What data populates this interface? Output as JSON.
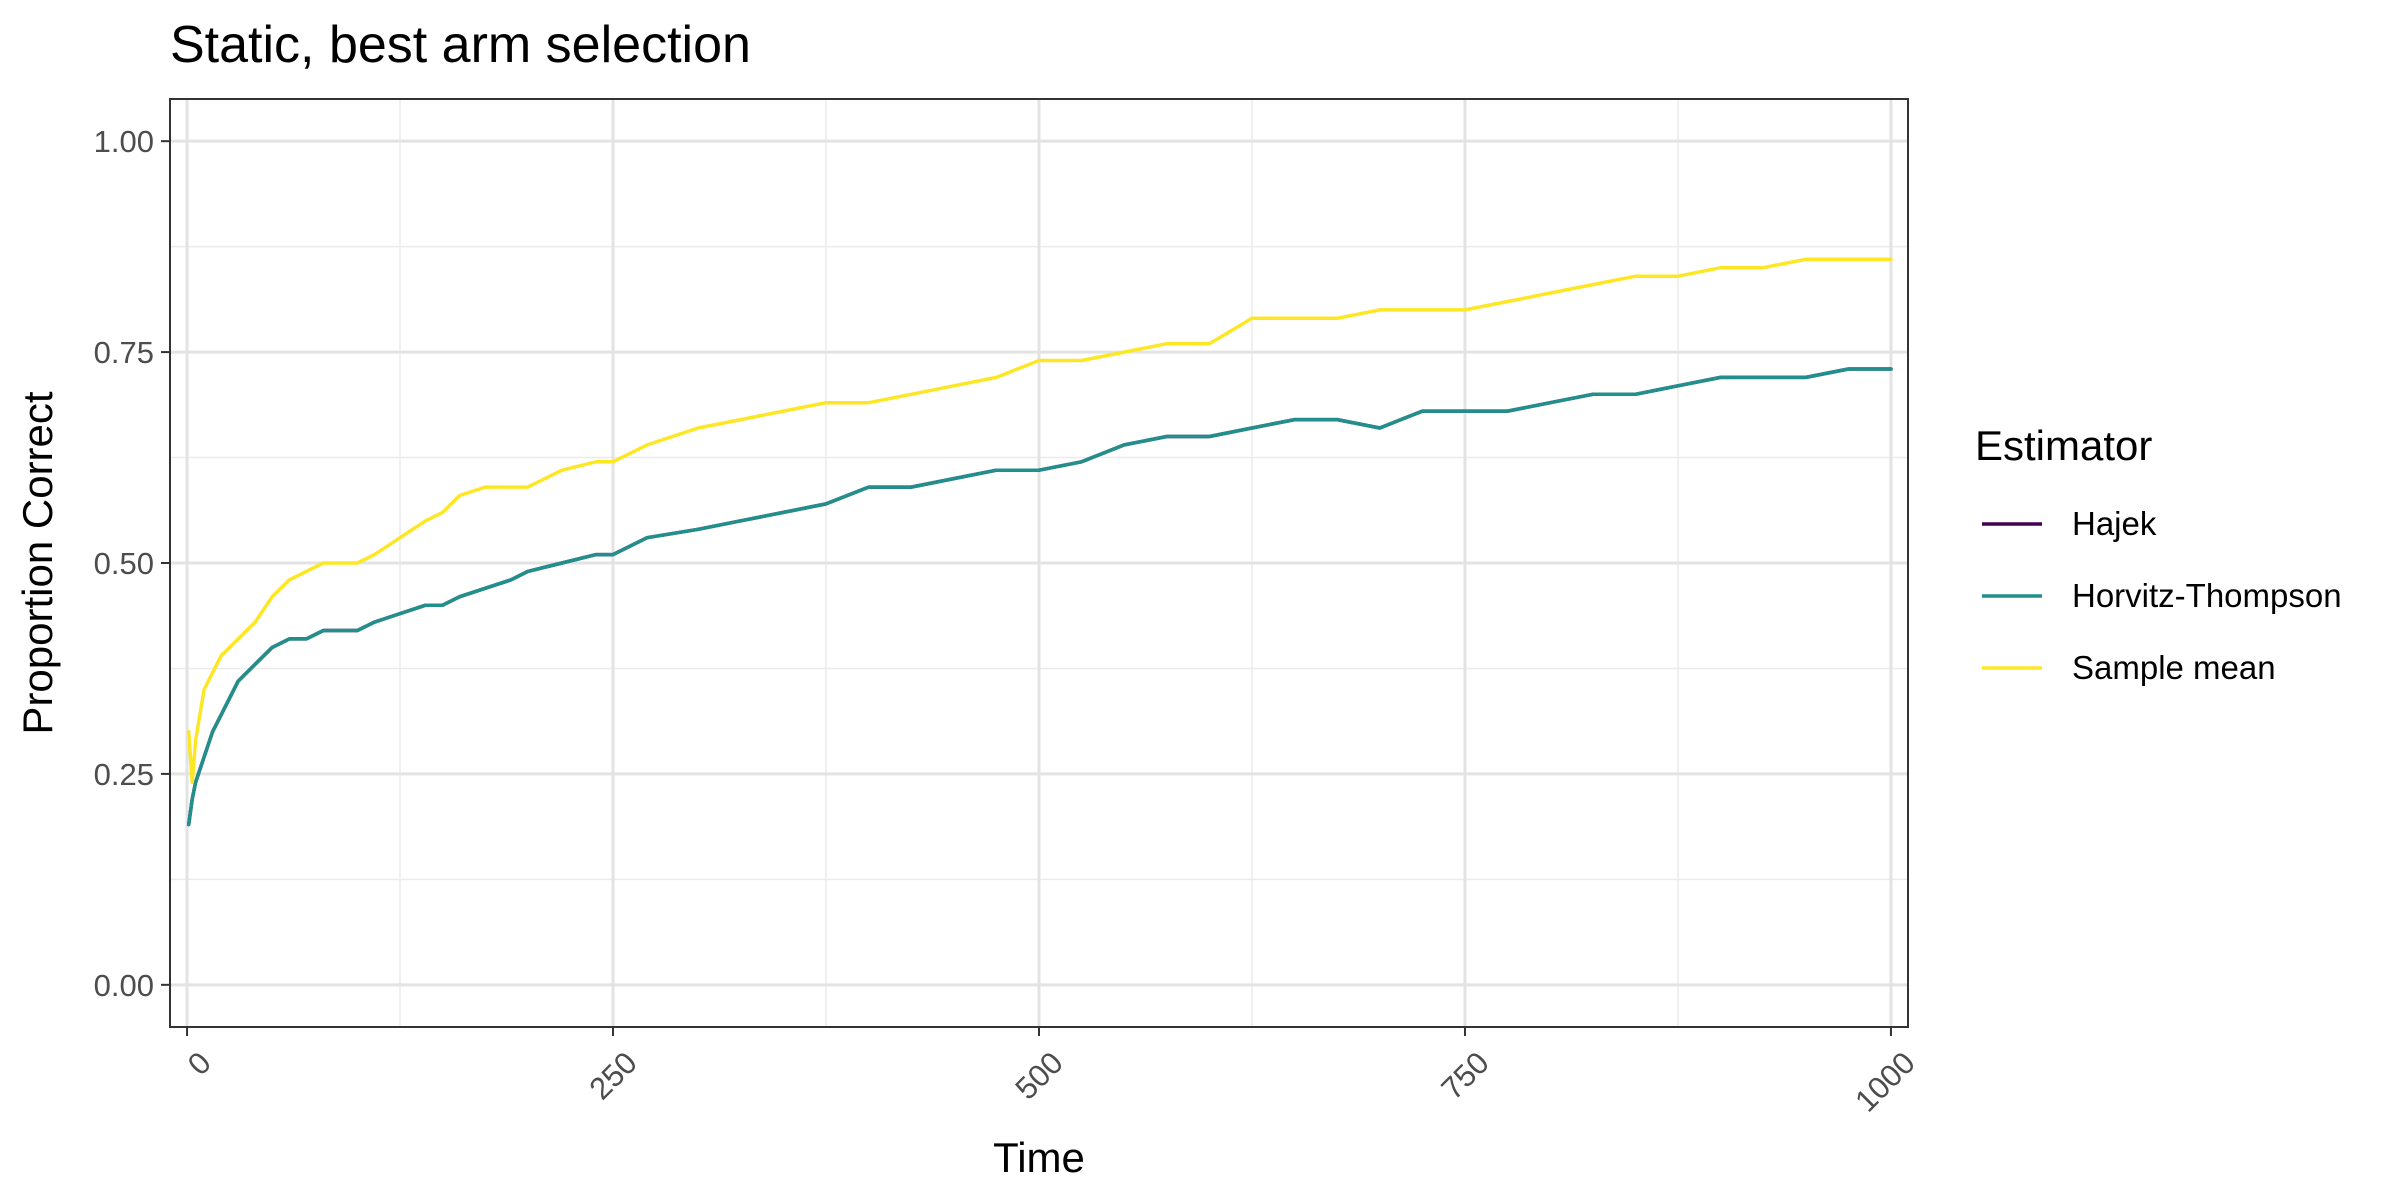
{
  "chart_data": {
    "type": "line",
    "title": "Static, best arm selection",
    "xlabel": "Time",
    "ylabel": "Proportion Correct",
    "xlim": [
      -10,
      1010
    ],
    "ylim": [
      -0.05,
      1.05
    ],
    "x_ticks": [
      0,
      250,
      500,
      750,
      1000
    ],
    "y_ticks": [
      0.0,
      0.25,
      0.5,
      0.75,
      1.0
    ],
    "x_tick_labels": [
      "0",
      "250",
      "500",
      "750",
      "1000"
    ],
    "y_tick_labels": [
      "0.00",
      "0.25",
      "0.50",
      "0.75",
      "1.00"
    ],
    "grid": true,
    "legend": {
      "title": "Estimator",
      "position": "right",
      "entries": [
        "Hajek",
        "Horvitz-Thompson",
        "Sample mean"
      ]
    },
    "x": [
      1,
      3,
      5,
      10,
      15,
      20,
      30,
      40,
      50,
      60,
      70,
      80,
      90,
      100,
      110,
      125,
      140,
      150,
      160,
      175,
      190,
      200,
      220,
      240,
      250,
      270,
      300,
      325,
      350,
      375,
      400,
      425,
      450,
      475,
      500,
      525,
      550,
      575,
      600,
      625,
      650,
      675,
      700,
      725,
      750,
      775,
      800,
      825,
      850,
      875,
      900,
      925,
      950,
      975,
      1000
    ],
    "series": [
      {
        "name": "Hajek",
        "color": "#440154",
        "values": [
          0.19,
          0.22,
          0.24,
          0.27,
          0.3,
          0.32,
          0.36,
          0.38,
          0.4,
          0.41,
          0.41,
          0.42,
          0.42,
          0.42,
          0.43,
          0.44,
          0.45,
          0.45,
          0.46,
          0.47,
          0.48,
          0.49,
          0.5,
          0.51,
          0.51,
          0.53,
          0.54,
          0.55,
          0.56,
          0.57,
          0.59,
          0.59,
          0.6,
          0.61,
          0.61,
          0.62,
          0.64,
          0.65,
          0.65,
          0.66,
          0.67,
          0.67,
          0.66,
          0.68,
          0.68,
          0.68,
          0.69,
          0.7,
          0.7,
          0.71,
          0.72,
          0.72,
          0.72,
          0.73,
          0.73
        ]
      },
      {
        "name": "Horvitz-Thompson",
        "color": "#21908c",
        "values": [
          0.19,
          0.22,
          0.24,
          0.27,
          0.3,
          0.32,
          0.36,
          0.38,
          0.4,
          0.41,
          0.41,
          0.42,
          0.42,
          0.42,
          0.43,
          0.44,
          0.45,
          0.45,
          0.46,
          0.47,
          0.48,
          0.49,
          0.5,
          0.51,
          0.51,
          0.53,
          0.54,
          0.55,
          0.56,
          0.57,
          0.59,
          0.59,
          0.6,
          0.61,
          0.61,
          0.62,
          0.64,
          0.65,
          0.65,
          0.66,
          0.67,
          0.67,
          0.66,
          0.68,
          0.68,
          0.68,
          0.69,
          0.7,
          0.7,
          0.71,
          0.72,
          0.72,
          0.72,
          0.73,
          0.73
        ]
      },
      {
        "name": "Sample mean",
        "color": "#fde725",
        "values": [
          0.3,
          0.24,
          0.29,
          0.35,
          0.37,
          0.39,
          0.41,
          0.43,
          0.46,
          0.48,
          0.49,
          0.5,
          0.5,
          0.5,
          0.51,
          0.53,
          0.55,
          0.56,
          0.58,
          0.59,
          0.59,
          0.59,
          0.61,
          0.62,
          0.62,
          0.64,
          0.66,
          0.67,
          0.68,
          0.69,
          0.69,
          0.7,
          0.71,
          0.72,
          0.74,
          0.74,
          0.75,
          0.76,
          0.76,
          0.79,
          0.79,
          0.79,
          0.8,
          0.8,
          0.8,
          0.81,
          0.82,
          0.83,
          0.84,
          0.84,
          0.85,
          0.85,
          0.86,
          0.86,
          0.86
        ]
      }
    ]
  }
}
